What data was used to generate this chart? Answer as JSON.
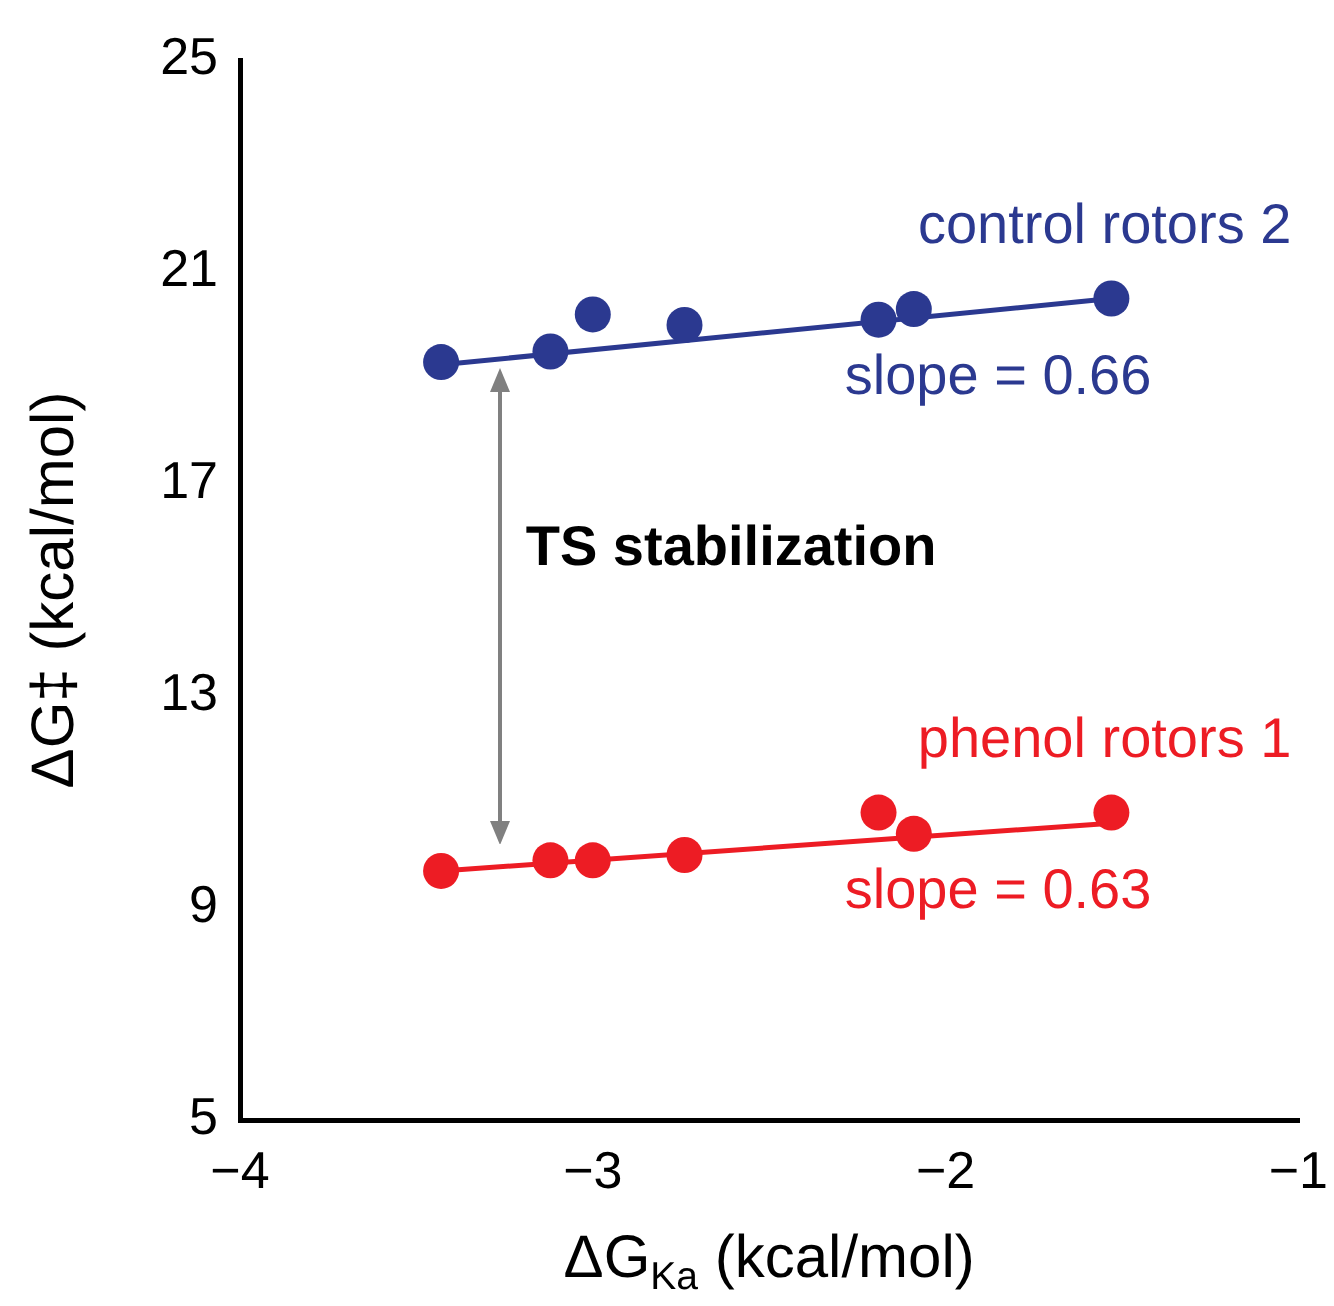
{
  "chart_data": {
    "type": "scatter",
    "xlabel": "ΔG$_{Ka}$ (kcal/mol)",
    "ylabel": "ΔG‡ (kcal/mol)",
    "xlim": [
      -4,
      -1
    ],
    "xticks": [
      -4,
      -3,
      -2,
      -1
    ],
    "ylim": [
      5,
      25
    ],
    "yticks": [
      5,
      9,
      13,
      17,
      21,
      25
    ],
    "grid": false,
    "legend": false,
    "marker": "circle",
    "series": [
      {
        "name": "control rotors 2",
        "color": "#2b3990",
        "x": [
          -3.43,
          -3.12,
          -3.0,
          -2.74,
          -2.19,
          -2.09,
          -1.53
        ],
        "values": [
          19.3,
          19.5,
          20.2,
          20.0,
          20.1,
          20.3,
          20.5
        ]
      },
      {
        "name": "phenol rotors 1",
        "color": "#ed1c24",
        "x": [
          -3.43,
          -3.12,
          -3.0,
          -2.74,
          -2.19,
          -2.09,
          -1.53
        ],
        "values": [
          9.7,
          9.9,
          9.9,
          10.0,
          10.8,
          10.4,
          10.8
        ]
      },
      {
        "type": "line",
        "color": "#2b3990",
        "x": [
          -3.43,
          -1.53
        ],
        "values": [
          19.25,
          20.5
        ],
        "marker": "none"
      },
      {
        "type": "line",
        "color": "#ed1c24",
        "x": [
          -3.43,
          -1.53
        ],
        "values": [
          9.7,
          10.6
        ],
        "marker": "none"
      }
    ],
    "annotations": [
      "slope = 0.66",
      "slope = 0.63",
      "TS stabilization"
    ]
  }
}
